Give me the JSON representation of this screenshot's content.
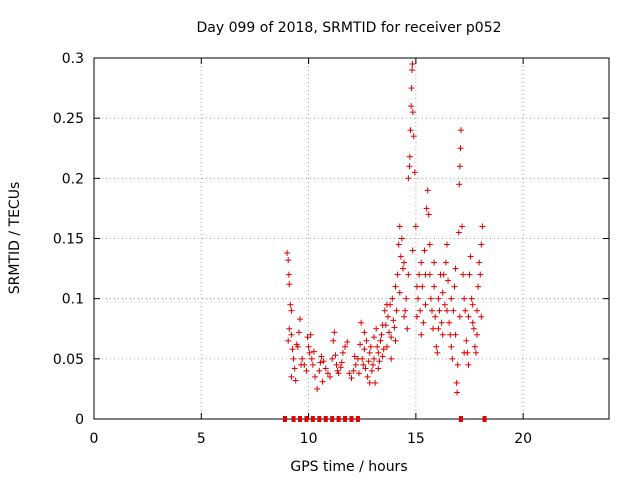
{
  "chart_data": {
    "type": "scatter",
    "title": "Day 099 of 2018, SRMTID for receiver p052",
    "xlabel": "GPS time / hours",
    "ylabel": "SRMTID / TECUs",
    "xlim": [
      0,
      24
    ],
    "ylim": [
      0,
      0.3
    ],
    "xticks": [
      0,
      5,
      10,
      15,
      20
    ],
    "xtick_labels": [
      "0",
      "5",
      "10",
      "15",
      "20"
    ],
    "yticks": [
      0,
      0.05,
      0.1,
      0.15,
      0.2,
      0.25,
      0.3
    ],
    "ytick_labels": [
      "0",
      "0.05",
      "0.1",
      "0.15",
      "0.2",
      "0.25",
      "0.3"
    ],
    "grid": true,
    "marker": "+",
    "color": "#e00000",
    "zero_marks_x": [
      8.9,
      9.3,
      9.6,
      9.9,
      10.2,
      10.5,
      10.8,
      11.1,
      11.4,
      11.7,
      12.0,
      12.3,
      17.1,
      18.2
    ],
    "series": [
      {
        "name": "SRMTID",
        "points": [
          [
            9.0,
            0.138
          ],
          [
            9.05,
            0.132
          ],
          [
            9.08,
            0.12
          ],
          [
            9.1,
            0.112
          ],
          [
            9.15,
            0.095
          ],
          [
            9.2,
            0.09
          ],
          [
            9.1,
            0.075
          ],
          [
            9.05,
            0.065
          ],
          [
            9.2,
            0.07
          ],
          [
            9.25,
            0.058
          ],
          [
            9.3,
            0.05
          ],
          [
            9.35,
            0.042
          ],
          [
            9.2,
            0.035
          ],
          [
            9.4,
            0.032
          ],
          [
            9.5,
            0.06
          ],
          [
            9.55,
            0.072
          ],
          [
            9.6,
            0.083
          ],
          [
            9.7,
            0.05
          ],
          [
            9.8,
            0.045
          ],
          [
            9.9,
            0.04
          ],
          [
            9.95,
            0.068
          ],
          [
            10.0,
            0.06
          ],
          [
            10.05,
            0.055
          ],
          [
            10.1,
            0.07
          ],
          [
            10.15,
            0.05
          ],
          [
            10.2,
            0.045
          ],
          [
            10.3,
            0.035
          ],
          [
            10.4,
            0.025
          ],
          [
            10.5,
            0.04
          ],
          [
            10.55,
            0.047
          ],
          [
            10.6,
            0.052
          ],
          [
            10.7,
            0.048
          ],
          [
            10.8,
            0.042
          ],
          [
            10.9,
            0.038
          ],
          [
            11.0,
            0.035
          ],
          [
            11.1,
            0.05
          ],
          [
            11.15,
            0.065
          ],
          [
            11.2,
            0.072
          ],
          [
            11.3,
            0.045
          ],
          [
            11.35,
            0.04
          ],
          [
            11.4,
            0.038
          ],
          [
            11.5,
            0.043
          ],
          [
            11.6,
            0.055
          ],
          [
            11.7,
            0.06
          ],
          [
            11.8,
            0.064
          ],
          [
            11.9,
            0.038
          ],
          [
            12.0,
            0.034
          ],
          [
            12.1,
            0.04
          ],
          [
            12.2,
            0.045
          ],
          [
            12.3,
            0.05
          ],
          [
            12.4,
            0.062
          ],
          [
            12.45,
            0.08
          ],
          [
            12.5,
            0.05
          ],
          [
            12.55,
            0.045
          ],
          [
            12.6,
            0.058
          ],
          [
            12.65,
            0.042
          ],
          [
            12.7,
            0.065
          ],
          [
            12.75,
            0.035
          ],
          [
            12.8,
            0.048
          ],
          [
            12.85,
            0.055
          ],
          [
            12.9,
            0.06
          ],
          [
            12.95,
            0.04
          ],
          [
            13.0,
            0.045
          ],
          [
            13.05,
            0.05
          ],
          [
            13.1,
            0.03
          ],
          [
            13.15,
            0.075
          ],
          [
            13.2,
            0.06
          ],
          [
            13.25,
            0.055
          ],
          [
            13.3,
            0.048
          ],
          [
            13.35,
            0.065
          ],
          [
            13.4,
            0.07
          ],
          [
            13.45,
            0.052
          ],
          [
            13.5,
            0.058
          ],
          [
            13.55,
            0.09
          ],
          [
            13.6,
            0.078
          ],
          [
            13.65,
            0.06
          ],
          [
            13.7,
            0.085
          ],
          [
            13.75,
            0.072
          ],
          [
            13.8,
            0.095
          ],
          [
            13.85,
            0.068
          ],
          [
            13.9,
            0.1
          ],
          [
            13.95,
            0.082
          ],
          [
            14.0,
            0.076
          ],
          [
            14.05,
            0.11
          ],
          [
            14.1,
            0.09
          ],
          [
            14.15,
            0.12
          ],
          [
            14.2,
            0.145
          ],
          [
            14.25,
            0.16
          ],
          [
            14.3,
            0.135
          ],
          [
            14.35,
            0.15
          ],
          [
            14.4,
            0.125
          ],
          [
            14.45,
            0.13
          ],
          [
            14.5,
            0.09
          ],
          [
            14.55,
            0.1
          ],
          [
            14.6,
            0.075
          ],
          [
            14.65,
            0.2
          ],
          [
            14.7,
            0.21
          ],
          [
            14.72,
            0.218
          ],
          [
            14.75,
            0.24
          ],
          [
            14.78,
            0.26
          ],
          [
            14.8,
            0.275
          ],
          [
            14.82,
            0.29
          ],
          [
            14.84,
            0.295
          ],
          [
            14.86,
            0.255
          ],
          [
            14.9,
            0.235
          ],
          [
            14.95,
            0.205
          ],
          [
            15.0,
            0.16
          ],
          [
            15.05,
            0.11
          ],
          [
            15.1,
            0.1
          ],
          [
            15.15,
            0.12
          ],
          [
            15.2,
            0.09
          ],
          [
            15.25,
            0.13
          ],
          [
            15.3,
            0.11
          ],
          [
            15.35,
            0.08
          ],
          [
            15.4,
            0.14
          ],
          [
            15.45,
            0.12
          ],
          [
            15.5,
            0.175
          ],
          [
            15.55,
            0.19
          ],
          [
            15.6,
            0.17
          ],
          [
            15.65,
            0.12
          ],
          [
            15.7,
            0.1
          ],
          [
            15.75,
            0.09
          ],
          [
            15.8,
            0.075
          ],
          [
            15.85,
            0.11
          ],
          [
            15.9,
            0.085
          ],
          [
            15.95,
            0.06
          ],
          [
            16.0,
            0.055
          ],
          [
            16.05,
            0.1
          ],
          [
            16.1,
            0.09
          ],
          [
            16.15,
            0.12
          ],
          [
            16.2,
            0.08
          ],
          [
            16.25,
            0.07
          ],
          [
            16.3,
            0.12
          ],
          [
            16.35,
            0.095
          ],
          [
            16.4,
            0.13
          ],
          [
            16.45,
            0.145
          ],
          [
            16.5,
            0.115
          ],
          [
            16.55,
            0.08
          ],
          [
            16.6,
            0.07
          ],
          [
            16.65,
            0.06
          ],
          [
            16.7,
            0.05
          ],
          [
            16.75,
            0.09
          ],
          [
            16.8,
            0.11
          ],
          [
            16.85,
            0.07
          ],
          [
            16.9,
            0.03
          ],
          [
            16.92,
            0.022
          ],
          [
            16.95,
            0.045
          ],
          [
            17.0,
            0.155
          ],
          [
            17.02,
            0.195
          ],
          [
            17.05,
            0.21
          ],
          [
            17.08,
            0.225
          ],
          [
            17.1,
            0.24
          ],
          [
            17.15,
            0.16
          ],
          [
            17.2,
            0.12
          ],
          [
            17.25,
            0.1
          ],
          [
            17.3,
            0.09
          ],
          [
            17.35,
            0.065
          ],
          [
            17.4,
            0.055
          ],
          [
            17.45,
            0.085
          ],
          [
            17.5,
            0.12
          ],
          [
            17.55,
            0.135
          ],
          [
            17.6,
            0.1
          ],
          [
            17.65,
            0.08
          ],
          [
            17.7,
            0.075
          ],
          [
            17.75,
            0.06
          ],
          [
            17.8,
            0.055
          ],
          [
            17.85,
            0.09
          ],
          [
            17.9,
            0.11
          ],
          [
            17.95,
            0.13
          ],
          [
            18.0,
            0.12
          ],
          [
            18.05,
            0.145
          ],
          [
            18.1,
            0.16
          ],
          [
            9.45,
            0.062
          ],
          [
            9.65,
            0.045
          ],
          [
            10.25,
            0.056
          ],
          [
            10.65,
            0.031
          ],
          [
            11.25,
            0.053
          ],
          [
            11.55,
            0.047
          ],
          [
            12.15,
            0.052
          ],
          [
            12.35,
            0.038
          ],
          [
            12.6,
            0.072
          ],
          [
            12.85,
            0.03
          ],
          [
            13.05,
            0.068
          ],
          [
            13.25,
            0.042
          ],
          [
            13.45,
            0.078
          ],
          [
            13.65,
            0.095
          ],
          [
            13.85,
            0.05
          ],
          [
            14.05,
            0.065
          ],
          [
            14.25,
            0.105
          ],
          [
            14.45,
            0.085
          ],
          [
            14.65,
            0.12
          ],
          [
            14.85,
            0.14
          ],
          [
            15.05,
            0.085
          ],
          [
            15.25,
            0.07
          ],
          [
            15.45,
            0.095
          ],
          [
            15.65,
            0.145
          ],
          [
            15.85,
            0.13
          ],
          [
            16.05,
            0.075
          ],
          [
            16.25,
            0.105
          ],
          [
            16.45,
            0.09
          ],
          [
            16.65,
            0.1
          ],
          [
            16.85,
            0.125
          ],
          [
            17.05,
            0.085
          ],
          [
            17.25,
            0.055
          ],
          [
            17.45,
            0.045
          ],
          [
            17.65,
            0.095
          ],
          [
            17.85,
            0.07
          ],
          [
            18.05,
            0.085
          ]
        ]
      }
    ]
  }
}
